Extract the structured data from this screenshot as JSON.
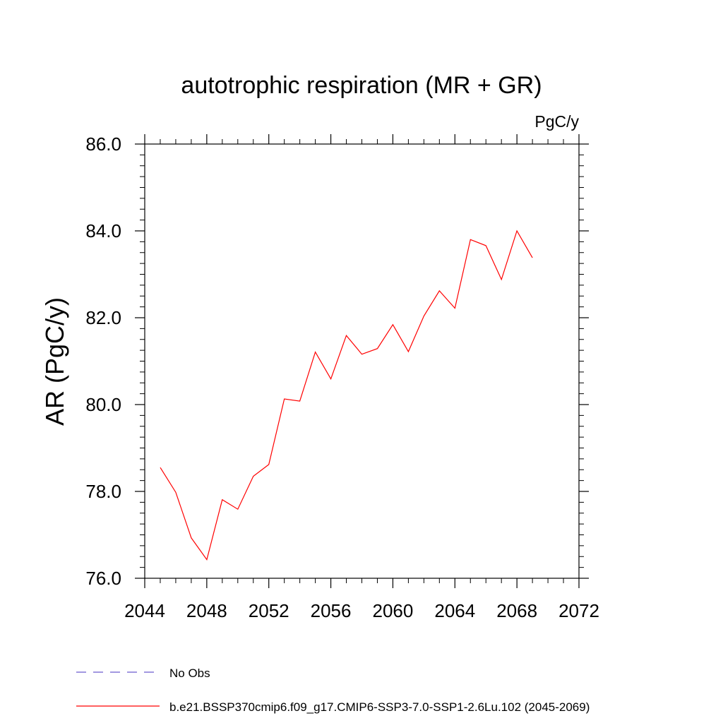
{
  "chart_data": {
    "type": "line",
    "title": "autotrophic respiration (MR + GR)",
    "units": "PgC/y",
    "ylabel": "AR  (PgC/y)",
    "xlabel": "",
    "xlim": [
      2044,
      2072
    ],
    "ylim": [
      76.0,
      86.0
    ],
    "x_ticks": [
      "2044",
      "2048",
      "2052",
      "2056",
      "2060",
      "2064",
      "2068",
      "2072"
    ],
    "y_ticks": [
      "76.0",
      "78.0",
      "80.0",
      "82.0",
      "84.0",
      "86.0"
    ],
    "grid": false,
    "legend_position": "bottom-left",
    "series": [
      {
        "name": "b.e21.BSSP370cmip6.f09_g17.CMIP6-SSP3-7.0-SSP1-2.6Lu.102 (2045-2069)",
        "color": "#ff0000",
        "style": "solid",
        "x": [
          2045,
          2046,
          2047,
          2048,
          2049,
          2050,
          2051,
          2052,
          2053,
          2054,
          2055,
          2056,
          2057,
          2058,
          2059,
          2060,
          2061,
          2062,
          2063,
          2064,
          2065,
          2066,
          2067,
          2068,
          2069
        ],
        "values": [
          78.55,
          77.98,
          76.93,
          76.43,
          77.81,
          77.59,
          78.35,
          78.62,
          80.13,
          80.08,
          81.21,
          80.59,
          81.59,
          81.16,
          81.29,
          81.84,
          81.22,
          82.04,
          82.62,
          82.22,
          83.8,
          83.66,
          82.88,
          84.0,
          83.38
        ]
      },
      {
        "name": "No Obs",
        "color": "#6a5acd",
        "style": "dashed",
        "x": [],
        "values": []
      }
    ]
  }
}
